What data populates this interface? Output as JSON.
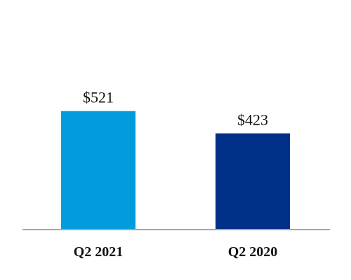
{
  "chart_data": {
    "type": "bar",
    "categories": [
      "Q2 2021",
      "Q2 2020"
    ],
    "values": [
      521,
      423
    ],
    "data_labels": [
      "$521",
      "$423"
    ],
    "colors": [
      "#009CDE",
      "#003087"
    ],
    "axis_color": "#A6A6A6",
    "ylim": [
      0,
      1200
    ],
    "grid": false,
    "title": "",
    "xlabel": "",
    "ylabel": ""
  }
}
